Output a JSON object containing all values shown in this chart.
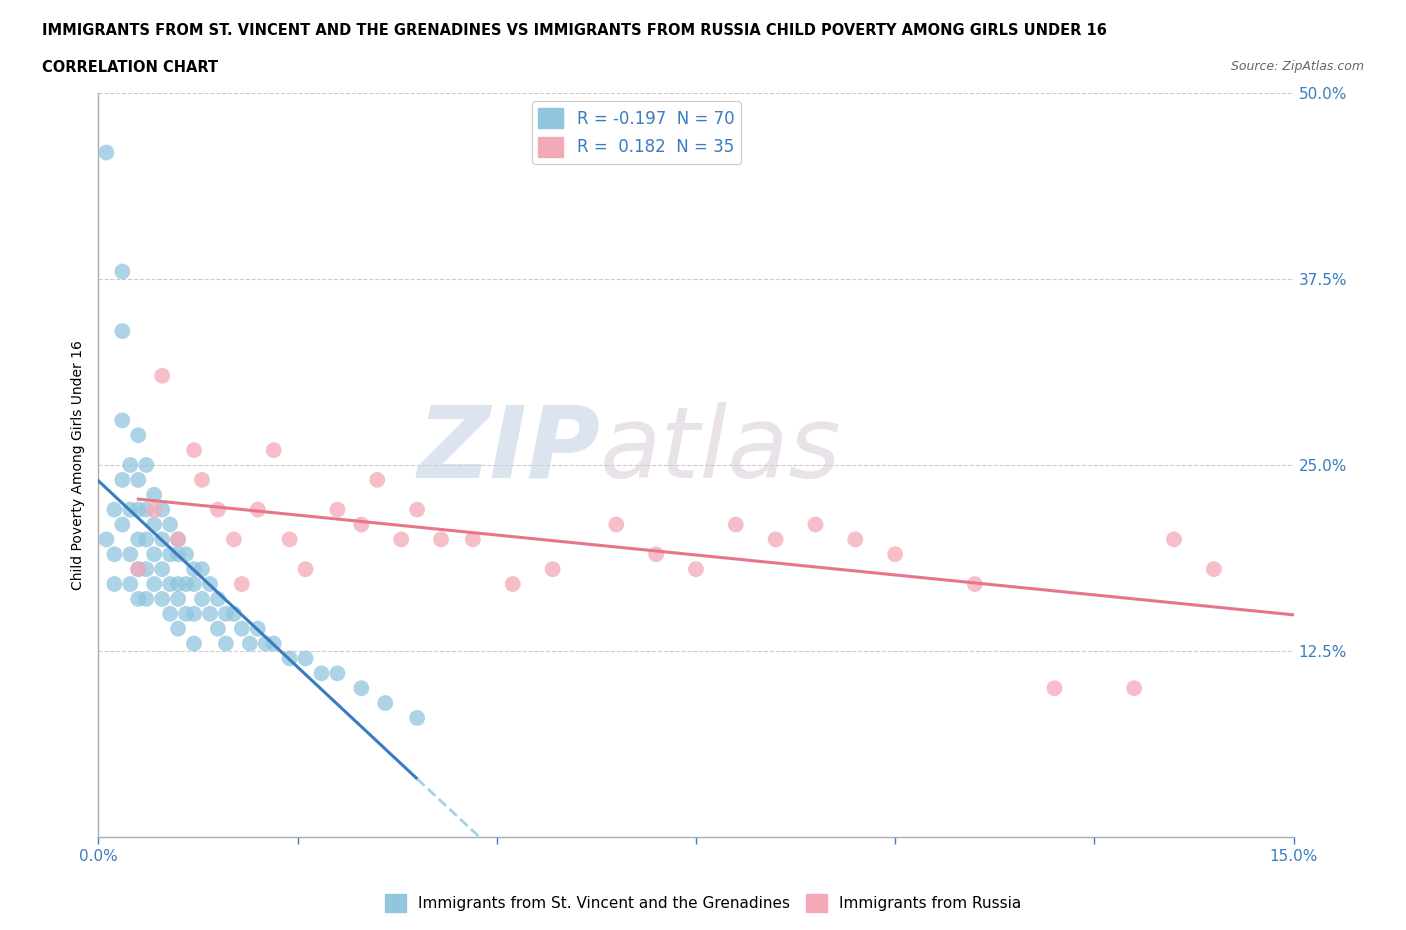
{
  "title_line1": "IMMIGRANTS FROM ST. VINCENT AND THE GRENADINES VS IMMIGRANTS FROM RUSSIA CHILD POVERTY AMONG GIRLS UNDER 16",
  "title_line2": "CORRELATION CHART",
  "source": "Source: ZipAtlas.com",
  "ylabel": "Child Poverty Among Girls Under 16",
  "xlim": [
    0.0,
    0.15
  ],
  "ylim": [
    0.0,
    0.5
  ],
  "ytick_positions": [
    0.0,
    0.125,
    0.25,
    0.375,
    0.5
  ],
  "ytick_labels": [
    "",
    "12.5%",
    "25.0%",
    "37.5%",
    "50.0%"
  ],
  "blue_R": -0.197,
  "blue_N": 70,
  "pink_R": 0.182,
  "pink_N": 35,
  "blue_color": "#92C5DE",
  "pink_color": "#F4A9B8",
  "blue_line_color": "#3A7CC0",
  "pink_line_color": "#E8768A",
  "blue_dashed_color": "#A8D0E8",
  "watermark_zip": "ZIP",
  "watermark_atlas": "atlas",
  "watermark_color_zip": "#C8D8E8",
  "watermark_color_atlas": "#D0C8D0",
  "blue_x": [
    0.001,
    0.001,
    0.002,
    0.002,
    0.002,
    0.003,
    0.003,
    0.003,
    0.003,
    0.003,
    0.004,
    0.004,
    0.004,
    0.004,
    0.005,
    0.005,
    0.005,
    0.005,
    0.005,
    0.005,
    0.006,
    0.006,
    0.006,
    0.006,
    0.006,
    0.007,
    0.007,
    0.007,
    0.007,
    0.008,
    0.008,
    0.008,
    0.008,
    0.009,
    0.009,
    0.009,
    0.009,
    0.01,
    0.01,
    0.01,
    0.01,
    0.01,
    0.011,
    0.011,
    0.011,
    0.012,
    0.012,
    0.012,
    0.012,
    0.013,
    0.013,
    0.014,
    0.014,
    0.015,
    0.015,
    0.016,
    0.016,
    0.017,
    0.018,
    0.019,
    0.02,
    0.021,
    0.022,
    0.024,
    0.026,
    0.028,
    0.03,
    0.033,
    0.036,
    0.04
  ],
  "blue_y": [
    0.46,
    0.2,
    0.22,
    0.19,
    0.17,
    0.38,
    0.34,
    0.28,
    0.24,
    0.21,
    0.25,
    0.22,
    0.19,
    0.17,
    0.27,
    0.24,
    0.22,
    0.2,
    0.18,
    0.16,
    0.25,
    0.22,
    0.2,
    0.18,
    0.16,
    0.23,
    0.21,
    0.19,
    0.17,
    0.22,
    0.2,
    0.18,
    0.16,
    0.21,
    0.19,
    0.17,
    0.15,
    0.2,
    0.19,
    0.17,
    0.16,
    0.14,
    0.19,
    0.17,
    0.15,
    0.18,
    0.17,
    0.15,
    0.13,
    0.18,
    0.16,
    0.17,
    0.15,
    0.16,
    0.14,
    0.15,
    0.13,
    0.15,
    0.14,
    0.13,
    0.14,
    0.13,
    0.13,
    0.12,
    0.12,
    0.11,
    0.11,
    0.1,
    0.09,
    0.08
  ],
  "pink_x": [
    0.005,
    0.007,
    0.008,
    0.01,
    0.012,
    0.013,
    0.015,
    0.017,
    0.018,
    0.02,
    0.022,
    0.024,
    0.026,
    0.03,
    0.033,
    0.035,
    0.038,
    0.04,
    0.043,
    0.047,
    0.052,
    0.057,
    0.065,
    0.07,
    0.075,
    0.08,
    0.085,
    0.09,
    0.095,
    0.1,
    0.11,
    0.12,
    0.13,
    0.135,
    0.14
  ],
  "pink_y": [
    0.18,
    0.22,
    0.31,
    0.2,
    0.26,
    0.24,
    0.22,
    0.2,
    0.17,
    0.22,
    0.26,
    0.2,
    0.18,
    0.22,
    0.21,
    0.24,
    0.2,
    0.22,
    0.2,
    0.2,
    0.17,
    0.18,
    0.21,
    0.19,
    0.18,
    0.21,
    0.2,
    0.21,
    0.2,
    0.19,
    0.17,
    0.1,
    0.1,
    0.2,
    0.18
  ]
}
